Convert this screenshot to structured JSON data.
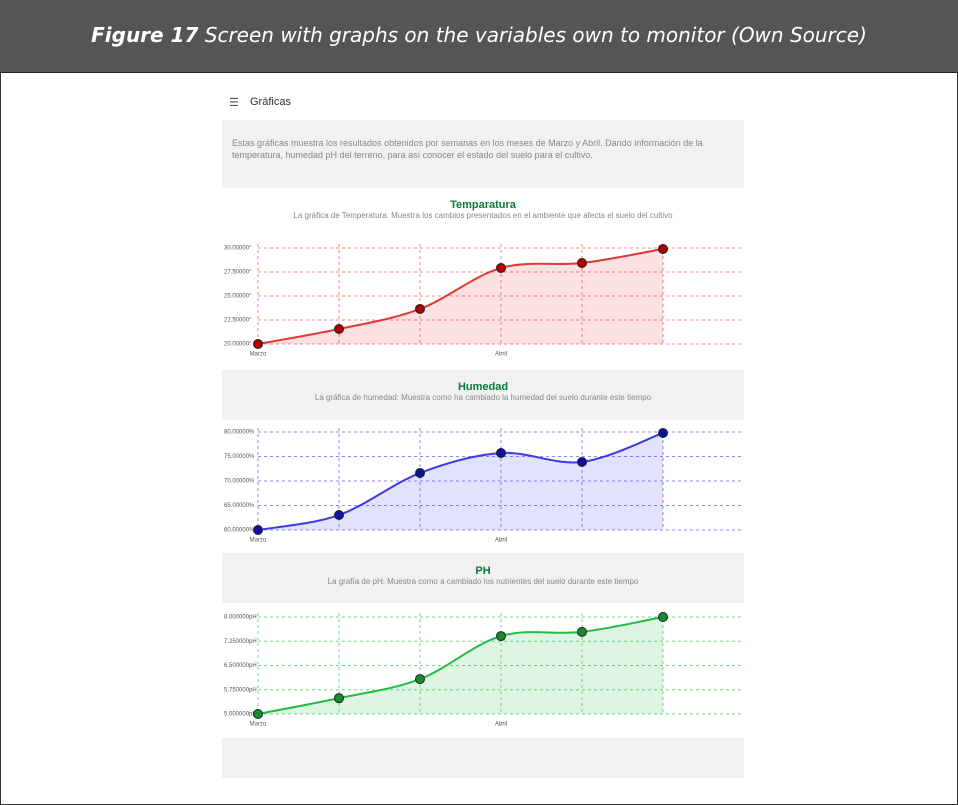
{
  "figure": {
    "label": "Figure 17",
    "caption": "Screen with graphs on the variables own to monitor (Own Source)"
  },
  "app": {
    "title": "Gráficas",
    "description": "Estas gráficas muestra los resultados obtenidos por semanas en los meses de Marzo y Abril. Dando información de la temperatura, humedad pH del terreno, para así conocer el estado del suelo para el cultivo."
  },
  "charts": [
    {
      "type": "line",
      "title": "Temparatura",
      "subtitle": "La gráfica de Temperatura: Muestra los cambios presentados en el ambiente que afecta el suelo del cultivo",
      "categories": [
        "Marzo",
        null,
        null,
        "Abril",
        null,
        null
      ],
      "values": [
        20,
        21.56,
        23.65,
        27.92,
        28.44,
        29.9
      ],
      "color": "#e53935",
      "point_color": "#b00000",
      "ylim": [
        20,
        30
      ],
      "yticks": [
        {
          "value": 20,
          "label": "20.00000°"
        },
        {
          "value": 22.5,
          "label": "22.50000°"
        },
        {
          "value": 25,
          "label": "25.00000°"
        },
        {
          "value": 27.5,
          "label": "27.50000°"
        },
        {
          "value": 30,
          "label": "30.00000°"
        }
      ],
      "grid": true
    },
    {
      "type": "line",
      "title": "Humedad",
      "subtitle": "La gráfica de humedad: Muestra como ha cambiado la humedad del suelo durante este tiempo",
      "categories": [
        "Marzo",
        null,
        null,
        "Abril",
        null,
        null
      ],
      "values": [
        60,
        63.06,
        71.63,
        75.71,
        73.88,
        79.8
      ],
      "color": "#3a3ae8",
      "point_color": "#1010a0",
      "ylim": [
        60,
        80
      ],
      "yticks": [
        {
          "value": 60,
          "label": "60.00000%"
        },
        {
          "value": 65,
          "label": "65.00000%"
        },
        {
          "value": 70,
          "label": "70.00000%"
        },
        {
          "value": 75,
          "label": "75.00000%"
        },
        {
          "value": 80,
          "label": "80.00000%"
        }
      ],
      "grid": true
    },
    {
      "type": "line",
      "title": "PH",
      "subtitle": "La grafía de pH: Muestra como a cambiado los nutrientes del suelo durante este tiempo",
      "categories": [
        "Marzo",
        null,
        null,
        "Abril",
        null,
        null
      ],
      "values": [
        5,
        5.49,
        6.08,
        7.41,
        7.54,
        8
      ],
      "color": "#22bb44",
      "point_color": "#1a8a30",
      "ylim": [
        5,
        8
      ],
      "yticks": [
        {
          "value": 5,
          "label": "5.000000pH"
        },
        {
          "value": 5.75,
          "label": "5.750000pH"
        },
        {
          "value": 6.5,
          "label": "6.500000pH"
        },
        {
          "value": 7.25,
          "label": "7.250000pH"
        },
        {
          "value": 8,
          "label": "8.000000pH"
        }
      ],
      "grid": true
    }
  ]
}
